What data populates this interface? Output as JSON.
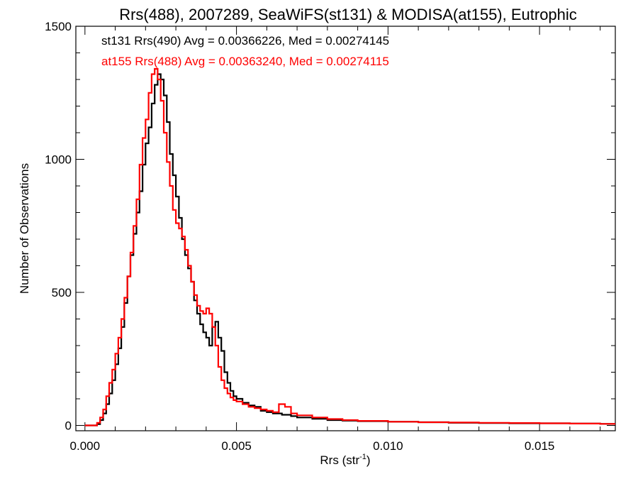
{
  "chart_data": {
    "type": "line",
    "title": "Rrs(488), 2007289, SeaWiFS(st131) & MODISA(at155), Eutrophic",
    "xlabel": "Rrs (str",
    "xlabel_sup": "-1",
    "xlabel_close": ")",
    "ylabel": "Number of Observations",
    "xlim": [
      -0.0003,
      0.0175
    ],
    "ylim": [
      -20,
      1500
    ],
    "xticks": [
      0.0,
      0.005,
      0.01,
      0.015
    ],
    "xtick_labels": [
      "0.000",
      "0.005",
      "0.010",
      "0.015"
    ],
    "yticks": [
      0,
      500,
      1000,
      1500
    ],
    "ytick_labels": [
      "0",
      "500",
      "1000",
      "1500"
    ],
    "grid": false,
    "legend_placement": "top-left",
    "series": [
      {
        "name": "st131 Rrs(490) Avg = 0.00366226, Med = 0.00274145",
        "color": "#000000",
        "x": [
          0.0,
          0.0002,
          0.0004,
          0.0005,
          0.0006,
          0.0007,
          0.0008,
          0.0009,
          0.001,
          0.0011,
          0.0012,
          0.0013,
          0.0014,
          0.0015,
          0.0016,
          0.0017,
          0.0018,
          0.0019,
          0.002,
          0.0021,
          0.0022,
          0.0023,
          0.0024,
          0.0025,
          0.0026,
          0.0027,
          0.0028,
          0.0029,
          0.003,
          0.0031,
          0.0032,
          0.0033,
          0.0034,
          0.0035,
          0.0036,
          0.0037,
          0.0038,
          0.0039,
          0.004,
          0.0041,
          0.0042,
          0.0043,
          0.0044,
          0.0045,
          0.0046,
          0.0047,
          0.0048,
          0.0049,
          0.005,
          0.0052,
          0.0054,
          0.0056,
          0.0058,
          0.006,
          0.0062,
          0.0065,
          0.0068,
          0.007,
          0.0075,
          0.008,
          0.0085,
          0.009,
          0.01,
          0.011,
          0.012,
          0.013,
          0.014,
          0.015,
          0.016,
          0.017,
          0.0175
        ],
        "y": [
          0,
          0,
          5,
          20,
          45,
          80,
          120,
          170,
          230,
          290,
          370,
          460,
          560,
          640,
          720,
          800,
          880,
          980,
          1060,
          1120,
          1210,
          1280,
          1320,
          1300,
          1240,
          1140,
          1020,
          940,
          860,
          780,
          700,
          640,
          590,
          540,
          470,
          420,
          380,
          350,
          330,
          300,
          370,
          390,
          330,
          280,
          200,
          160,
          130,
          110,
          100,
          85,
          75,
          70,
          55,
          50,
          45,
          40,
          35,
          30,
          25,
          20,
          18,
          16,
          14,
          12,
          10,
          9,
          8,
          8,
          7,
          6,
          6
        ]
      },
      {
        "name": "at155 Rrs(488) Avg = 0.00363240, Med = 0.00274115",
        "color": "#ff0000",
        "x": [
          0.0,
          0.0002,
          0.0004,
          0.0005,
          0.0006,
          0.0007,
          0.0008,
          0.0009,
          0.001,
          0.0011,
          0.0012,
          0.0013,
          0.0014,
          0.0015,
          0.0016,
          0.0017,
          0.0018,
          0.0019,
          0.002,
          0.0021,
          0.0022,
          0.0023,
          0.0024,
          0.0025,
          0.0026,
          0.0027,
          0.0028,
          0.0029,
          0.003,
          0.0031,
          0.0032,
          0.0033,
          0.0034,
          0.0035,
          0.0036,
          0.0037,
          0.0038,
          0.0039,
          0.004,
          0.0041,
          0.0042,
          0.0043,
          0.0044,
          0.0045,
          0.0046,
          0.0047,
          0.0048,
          0.0049,
          0.005,
          0.0052,
          0.0054,
          0.0056,
          0.0058,
          0.006,
          0.0062,
          0.0064,
          0.0066,
          0.0068,
          0.007,
          0.0075,
          0.008,
          0.0085,
          0.009,
          0.01,
          0.011,
          0.012,
          0.013,
          0.014,
          0.015,
          0.016,
          0.017,
          0.0175
        ],
        "y": [
          0,
          0,
          10,
          30,
          60,
          110,
          160,
          210,
          270,
          330,
          400,
          480,
          560,
          650,
          750,
          850,
          980,
          1080,
          1150,
          1250,
          1320,
          1340,
          1300,
          1220,
          1100,
          990,
          900,
          810,
          760,
          740,
          710,
          660,
          600,
          540,
          490,
          450,
          430,
          420,
          440,
          420,
          370,
          300,
          220,
          170,
          140,
          120,
          105,
          95,
          90,
          80,
          70,
          65,
          60,
          55,
          50,
          80,
          70,
          45,
          38,
          30,
          24,
          20,
          17,
          14,
          12,
          11,
          10,
          9,
          8,
          7,
          6,
          6
        ]
      }
    ]
  }
}
